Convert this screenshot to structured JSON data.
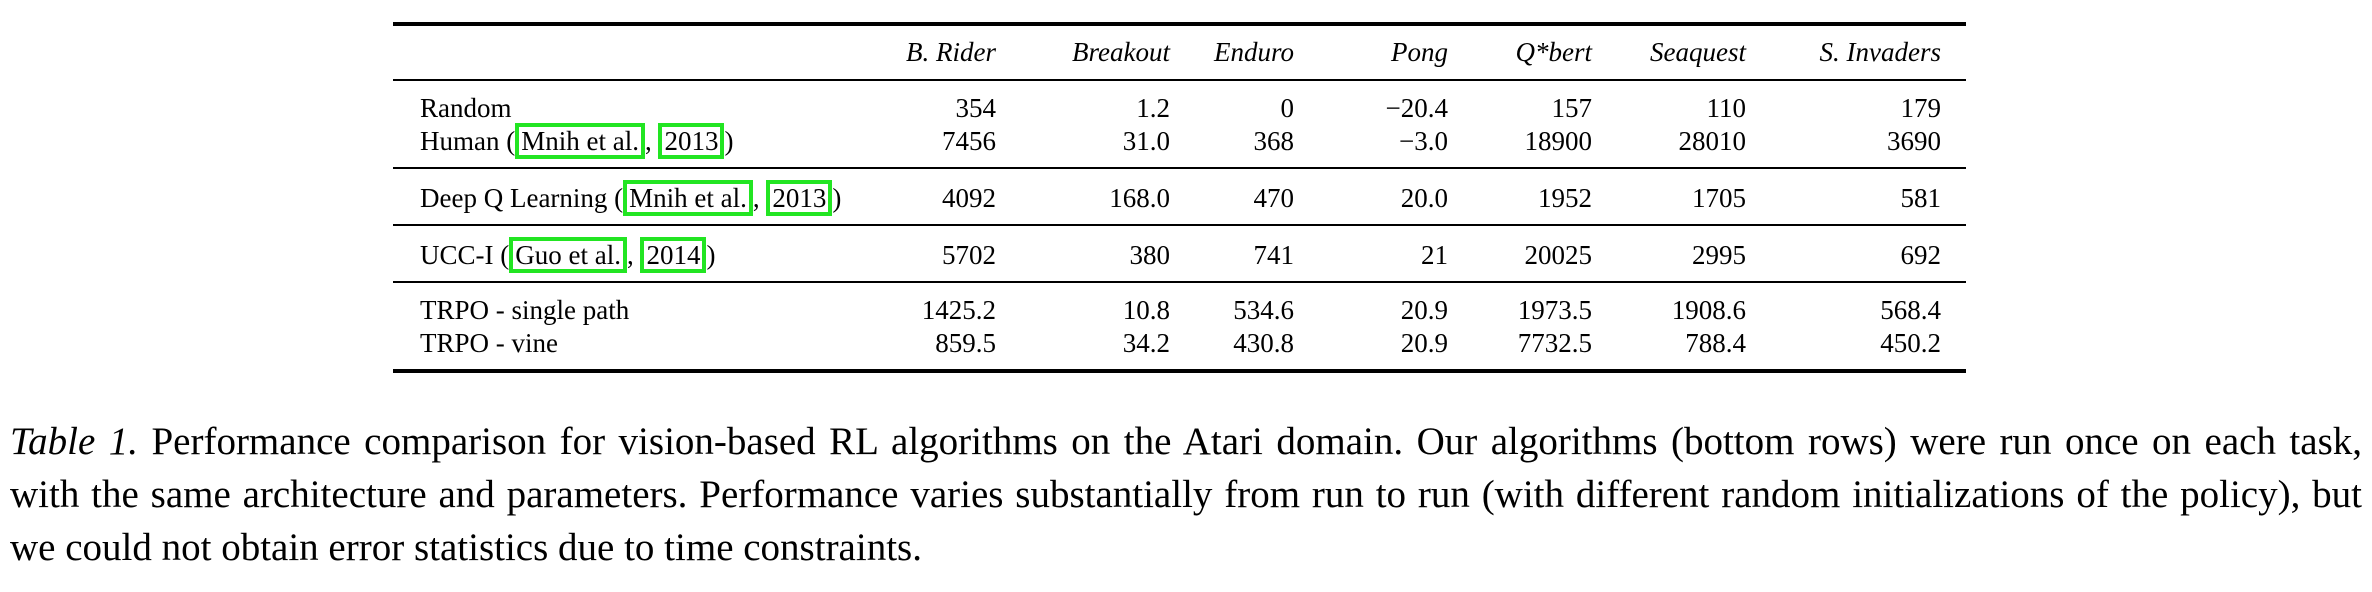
{
  "table": {
    "columns": [
      "B. Rider",
      "Breakout",
      "Enduro",
      "Pong",
      "Q*bert",
      "Seaquest",
      "S. Invaders"
    ],
    "rows": [
      {
        "label": "Random",
        "citation": null,
        "values": [
          "354",
          "1.2",
          "0",
          "−20.4",
          "157",
          "110",
          "179"
        ]
      },
      {
        "label": "Human (",
        "citation": {
          "author": "Mnih et al.",
          "year": "2013",
          "close": ")"
        },
        "values": [
          "7456",
          "31.0",
          "368",
          "−3.0",
          "18900",
          "28010",
          "3690"
        ]
      },
      {
        "label": "Deep Q Learning (",
        "citation": {
          "author": "Mnih et al.",
          "year": "2013",
          "close": ")"
        },
        "values": [
          "4092",
          "168.0",
          "470",
          "20.0",
          "1952",
          "1705",
          "581"
        ]
      },
      {
        "label": "UCC-I (",
        "citation": {
          "author": "Guo et al.",
          "year": "2014",
          "close": ")"
        },
        "values": [
          "5702",
          "380",
          "741",
          "21",
          "20025",
          "2995",
          "692"
        ]
      },
      {
        "label": "TRPO - single path",
        "citation": null,
        "values": [
          "1425.2",
          "10.8",
          "534.6",
          "20.9",
          "1973.5",
          "1908.6",
          "568.4"
        ]
      },
      {
        "label": "TRPO - vine",
        "citation": null,
        "values": [
          "859.5",
          "34.2",
          "430.8",
          "20.9",
          "7732.5",
          "788.4",
          "450.2"
        ]
      }
    ]
  },
  "caption": {
    "label": "Table 1.",
    "text": "Performance comparison for vision-based RL algorithms on the Atari domain. Our algorithms (bottom rows) were run once on each task, with the same architecture and parameters. Performance varies substantially from run to run (with different random initializations of the policy), but we could not obtain error statistics due to time constraints."
  },
  "highlight_color": "#22e522"
}
